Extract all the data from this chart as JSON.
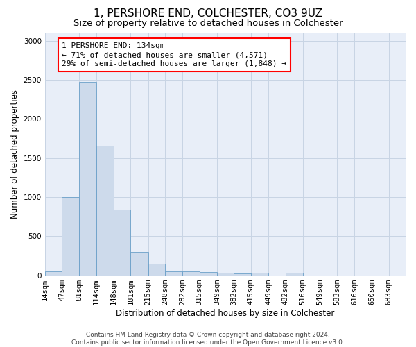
{
  "title": "1, PERSHORE END, COLCHESTER, CO3 9UZ",
  "subtitle": "Size of property relative to detached houses in Colchester",
  "xlabel": "Distribution of detached houses by size in Colchester",
  "ylabel": "Number of detached properties",
  "bar_values": [
    50,
    1000,
    2470,
    1655,
    840,
    300,
    150,
    50,
    50,
    40,
    30,
    20,
    30,
    0,
    30,
    0,
    0,
    0,
    0,
    0,
    0
  ],
  "bin_labels": [
    "14sqm",
    "47sqm",
    "81sqm",
    "114sqm",
    "148sqm",
    "181sqm",
    "215sqm",
    "248sqm",
    "282sqm",
    "315sqm",
    "349sqm",
    "382sqm",
    "415sqm",
    "449sqm",
    "482sqm",
    "516sqm",
    "549sqm",
    "583sqm",
    "616sqm",
    "650sqm",
    "683sqm"
  ],
  "bin_edges": [
    14,
    47,
    81,
    114,
    148,
    181,
    215,
    248,
    282,
    315,
    349,
    382,
    415,
    449,
    482,
    516,
    549,
    583,
    616,
    650,
    683,
    716
  ],
  "bar_color": "#cddaeb",
  "bar_edge_color": "#6a9fc8",
  "annotation_text": "1 PERSHORE END: 134sqm\n← 71% of detached houses are smaller (4,571)\n29% of semi-detached houses are larger (1,848) →",
  "ylim": [
    0,
    3100
  ],
  "yticks": [
    0,
    500,
    1000,
    1500,
    2000,
    2500,
    3000
  ],
  "grid_color": "#c8d4e4",
  "bg_color": "#e8eef8",
  "footer_text": "Contains HM Land Registry data © Crown copyright and database right 2024.\nContains public sector information licensed under the Open Government Licence v3.0.",
  "title_fontsize": 11,
  "subtitle_fontsize": 9.5,
  "annotation_fontsize": 8,
  "axis_label_fontsize": 8.5,
  "tick_fontsize": 7.5,
  "footer_fontsize": 6.5
}
